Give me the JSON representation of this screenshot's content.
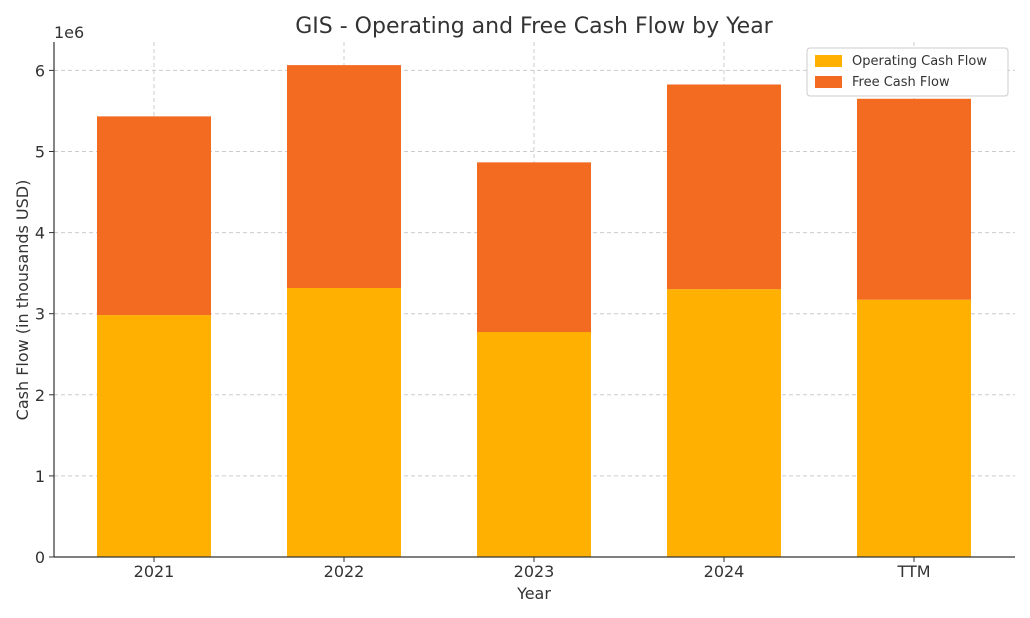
{
  "chart_data": {
    "type": "bar",
    "stacked": true,
    "title": "GIS - Operating and Free Cash Flow by Year",
    "xlabel": "Year",
    "ylabel": "Cash Flow (in thousands USD)",
    "y_offset_label": "1e6",
    "categories": [
      "2021",
      "2022",
      "2023",
      "2024",
      "TTM"
    ],
    "series": [
      {
        "name": "Operating Cash Flow",
        "color": "#FFB000",
        "values": [
          2983000,
          3317000,
          2774000,
          3302000,
          3173000
        ]
      },
      {
        "name": "Free Cash Flow",
        "color": "#F26B21",
        "values": [
          2450000,
          2748000,
          2092000,
          2524000,
          2477000
        ]
      }
    ],
    "ylim": [
      0,
      6350000
    ],
    "yticks": [
      0,
      1000000,
      2000000,
      3000000,
      4000000,
      5000000,
      6000000
    ],
    "ytick_labels": [
      "0",
      "1",
      "2",
      "3",
      "4",
      "5",
      "6"
    ],
    "grid": true,
    "legend_position": "top-right"
  }
}
